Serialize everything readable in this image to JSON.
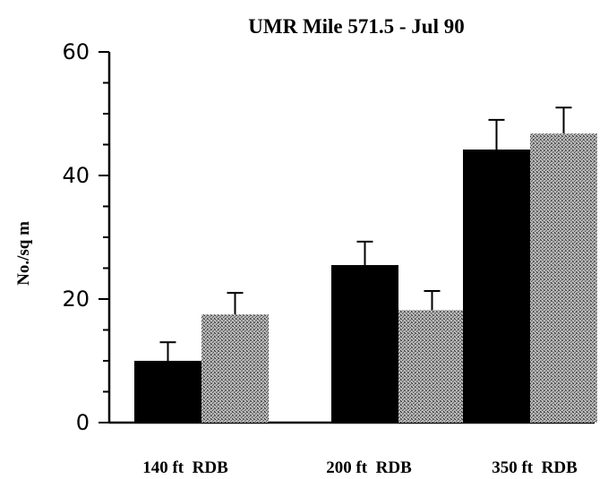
{
  "chart_data": {
    "type": "bar",
    "title": "UMR Mile 571.5 - Jul 90",
    "xlabel": "",
    "ylabel": "No./sq m",
    "ylim": [
      0,
      60
    ],
    "yticks": [
      0,
      20,
      40,
      60
    ],
    "minor_tick_step": 5,
    "grid": false,
    "legend": "none",
    "categories": [
      "140 ft  RDB",
      "200 ft  RDB",
      "350 ft  RDB"
    ],
    "series": [
      {
        "color": "#000000",
        "pattern": "solid",
        "values": [
          10,
          25.5,
          44.2
        ],
        "error": [
          3,
          3.8,
          4.8
        ]
      },
      {
        "color": "#9a9a9a",
        "pattern": "stipple",
        "values": [
          17.5,
          18.2,
          46.8
        ],
        "error": [
          3.5,
          3.1,
          4.2
        ]
      }
    ]
  }
}
